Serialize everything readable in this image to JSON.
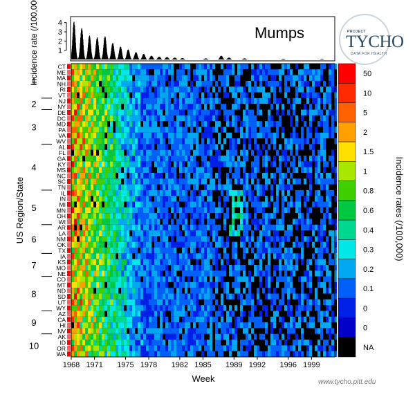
{
  "chart_data": [
    {
      "type": "bar",
      "title": "Mumps",
      "ylabel": "Incidence rate (/100,000)",
      "yticks": [
        "1",
        "2",
        "3",
        "4"
      ],
      "ylim": [
        0,
        4.5
      ],
      "peaks": [
        {
          "year": 1968,
          "value": 4.1
        },
        {
          "year": 1969,
          "value": 3.4
        },
        {
          "year": 1970,
          "value": 2.6
        },
        {
          "year": 1971,
          "value": 2.4
        },
        {
          "year": 1972,
          "value": 2.5
        },
        {
          "year": 1973,
          "value": 1.8
        },
        {
          "year": 1974,
          "value": 1.4
        },
        {
          "year": 1975,
          "value": 1.1
        },
        {
          "year": 1976,
          "value": 0.8
        },
        {
          "year": 1977,
          "value": 0.6
        },
        {
          "year": 1978,
          "value": 0.4
        },
        {
          "year": 1979,
          "value": 0.3
        },
        {
          "year": 1980,
          "value": 0.25
        },
        {
          "year": 1981,
          "value": 0.2
        },
        {
          "year": 1982,
          "value": 0.15
        },
        {
          "year": 1985,
          "value": 0.12
        },
        {
          "year": 1987,
          "value": 0.4
        },
        {
          "year": 1988,
          "value": 0.2
        },
        {
          "year": 1990,
          "value": 0.12
        },
        {
          "year": 1995,
          "value": 0.06
        },
        {
          "year": 2000,
          "value": 0.05
        }
      ]
    },
    {
      "type": "heatmap",
      "xlabel": "Week",
      "ylabel": "US Region/State",
      "x_ticks": [
        "1968",
        "1971",
        "1975",
        "1978",
        "1982",
        "1985",
        "1989",
        "1992",
        "1996",
        "1999"
      ],
      "x_range": [
        1968,
        2002
      ],
      "states": [
        "CT",
        "ME",
        "MA",
        "NH",
        "RI",
        "VT",
        "NJ",
        "NY",
        "DE",
        "DC",
        "MD",
        "PA",
        "VA",
        "WV",
        "AL",
        "FL",
        "GA",
        "KY",
        "MS",
        "NC",
        "SC",
        "TN",
        "IL",
        "IN",
        "MI",
        "MN",
        "OH",
        "WI",
        "AR",
        "LA",
        "NM",
        "OK",
        "TX",
        "IA",
        "KS",
        "MO",
        "NE",
        "CO",
        "MT",
        "ND",
        "SD",
        "UT",
        "WY",
        "AZ",
        "CA",
        "HI",
        "NV",
        "AK",
        "ID",
        "OR",
        "WA"
      ],
      "regions": [
        {
          "label": "1",
          "first": "CT",
          "last": "VT"
        },
        {
          "label": "2",
          "first": "NJ",
          "last": "NY"
        },
        {
          "label": "3",
          "first": "DE",
          "last": "WV"
        },
        {
          "label": "4",
          "first": "AL",
          "last": "TN"
        },
        {
          "label": "5",
          "first": "IL",
          "last": "WI"
        },
        {
          "label": "6",
          "first": "AR",
          "last": "TX"
        },
        {
          "label": "7",
          "first": "IA",
          "last": "NE"
        },
        {
          "label": "8",
          "first": "CO",
          "last": "WY"
        },
        {
          "label": "9",
          "first": "AZ",
          "last": "NV"
        },
        {
          "label": "10",
          "first": "AK",
          "last": "WA"
        }
      ],
      "legend": {
        "title": "Incidence rates (/100,000)",
        "labels": [
          "50",
          "10",
          "5",
          "2",
          "1.5",
          "1",
          "0.8",
          "0.6",
          "0.4",
          "0.3",
          "0.2",
          "0.1",
          "0",
          "0",
          "NA"
        ],
        "colors": [
          "#ff0000",
          "#ff2a00",
          "#ff6000",
          "#ffa000",
          "#ffe000",
          "#a8e800",
          "#40d000",
          "#00c840",
          "#00d890",
          "#00e8e8",
          "#00a8f0",
          "#0060f8",
          "#0020e8",
          "#0000c8",
          "#000000"
        ]
      }
    }
  ],
  "footer": "www.tycho.pitt.edu",
  "logo": {
    "top": "PROJECT",
    "name": "TYCHO",
    "sub": "DATA FOR HEALTH"
  },
  "colors": {
    "na": "#000000",
    "base": "#0000c8"
  }
}
